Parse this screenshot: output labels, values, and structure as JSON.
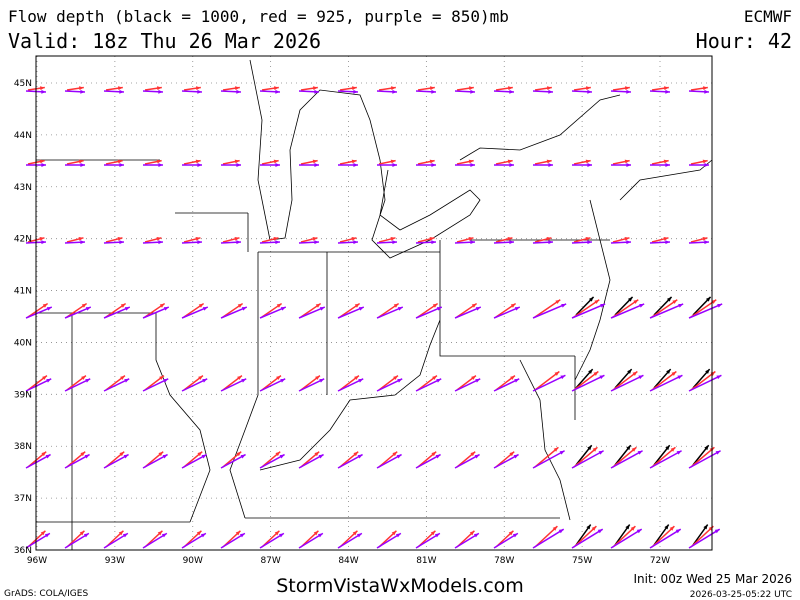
{
  "header": {
    "title": "Flow depth (black = 1000, red = 925, purple = 850)mb",
    "model": "ECMWF",
    "valid": "Valid: 18z Thu 26 Mar 2026",
    "hour": "Hour: 42"
  },
  "map": {
    "lat_labels": [
      "45N",
      "44N",
      "43N",
      "42N",
      "41N",
      "40N",
      "39N",
      "38N",
      "37N",
      "36N"
    ],
    "lon_labels": [
      "96W",
      "93W",
      "90W",
      "87W",
      "84W",
      "81W",
      "78W",
      "75W",
      "72W"
    ]
  },
  "footer": {
    "grads": "GrADS: COLA/IGES",
    "site": "StormVistaWxModels.com",
    "init": "Init: 00z Wed 25 Mar 2026",
    "stamp": "2026-03-25-05:22 UTC"
  }
}
